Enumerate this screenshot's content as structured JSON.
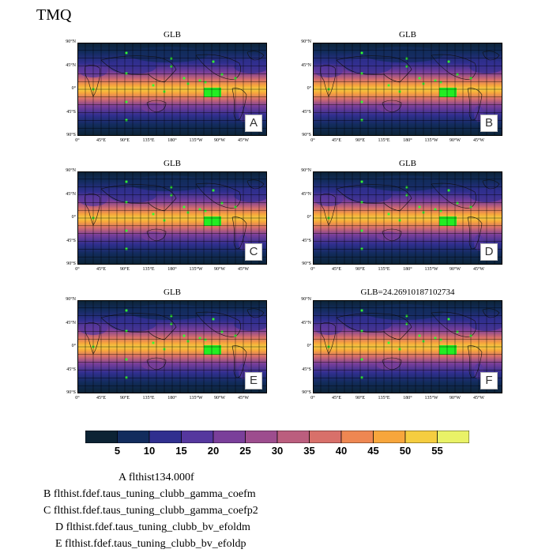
{
  "title": "TMQ",
  "panels": [
    {
      "id": "A",
      "title": "GLB"
    },
    {
      "id": "B",
      "title": "GLB"
    },
    {
      "id": "C",
      "title": "GLB"
    },
    {
      "id": "D",
      "title": "GLB"
    },
    {
      "id": "E",
      "title": "GLB"
    },
    {
      "id": "F",
      "title": "GLB=24.26910187102734"
    }
  ],
  "lat_ticks": [
    "90°N",
    "45°N",
    "0°",
    "45°S",
    "90°S"
  ],
  "lon_ticks": [
    "0°",
    "45°E",
    "90°E",
    "135°E",
    "180°",
    "135°W",
    "90°W",
    "45°W"
  ],
  "colorbar": {
    "labels": [
      "5",
      "10",
      "15",
      "20",
      "25",
      "30",
      "35",
      "40",
      "45",
      "50",
      "55"
    ],
    "colors": [
      "#0c2334",
      "#122c5d",
      "#302f8f",
      "#55379e",
      "#7a3f9a",
      "#9d4d8e",
      "#bb5e7e",
      "#d8706a",
      "#ee8752",
      "#f7a63c",
      "#f5cd40",
      "#e9f267"
    ]
  },
  "legend": [
    {
      "letter": "A",
      "text": "flthist134.000f"
    },
    {
      "letter": "B",
      "text": "flthist.fdef.taus_tuning_clubb_gamma_coefm"
    },
    {
      "letter": "C",
      "text": "flthist.fdef.taus_tuning_clubb_gamma_coefp2"
    },
    {
      "letter": "D",
      "text": "flthist.fdef.taus_tuning_clubb_bv_efoldm"
    },
    {
      "letter": "E",
      "text": "flthist.fdef.taus_tuning_clubb_bv_efoldp"
    }
  ]
}
